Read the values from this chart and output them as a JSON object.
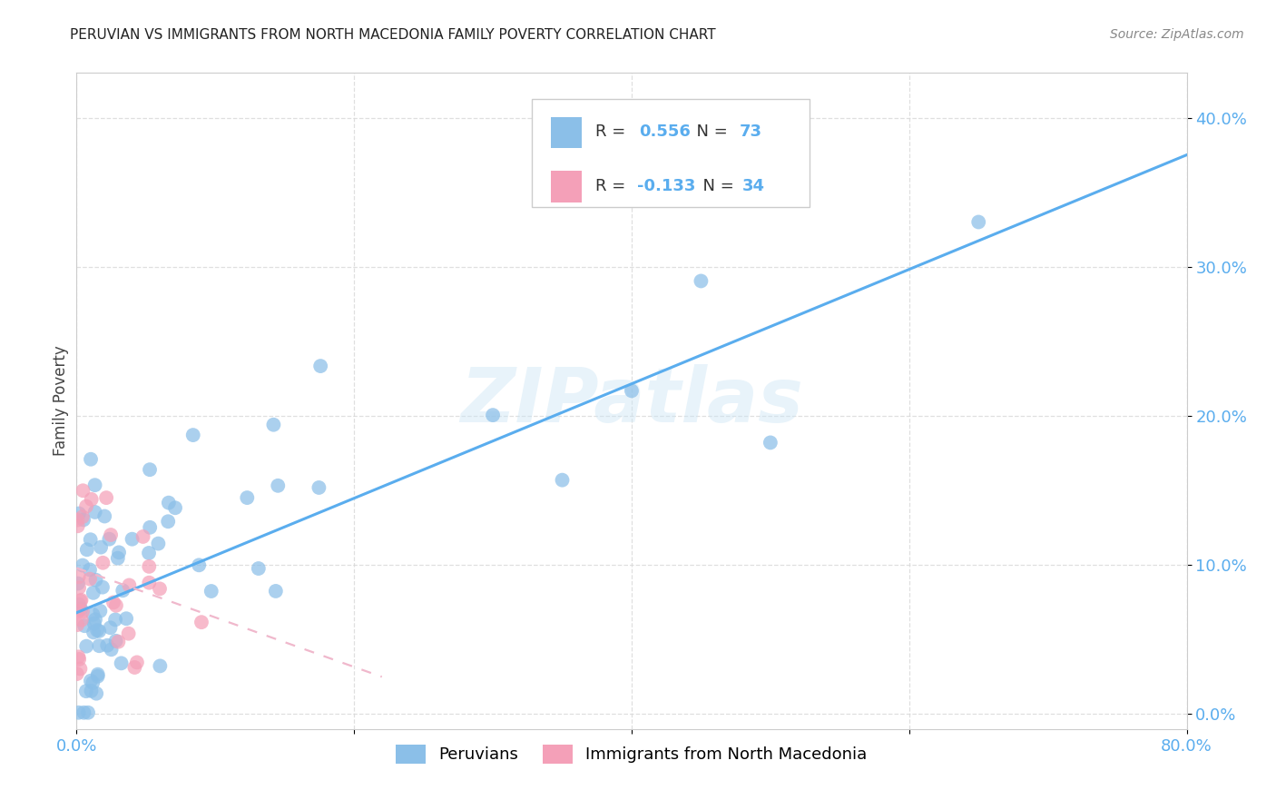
{
  "title": "PERUVIAN VS IMMIGRANTS FROM NORTH MACEDONIA FAMILY POVERTY CORRELATION CHART",
  "source": "Source: ZipAtlas.com",
  "ylabel": "Family Poverty",
  "ytick_values": [
    0.0,
    0.1,
    0.2,
    0.3,
    0.4
  ],
  "xlim": [
    0.0,
    0.8
  ],
  "ylim": [
    -0.01,
    0.43
  ],
  "peruvian_color": "#8bbfe8",
  "peruvian_color_edge": "#8bbfe8",
  "macedonia_color": "#f4a0b8",
  "macedonia_color_edge": "#f4a0b8",
  "trend_peruvian_color": "#5aadee",
  "trend_macedonia_color": "#f0b8cc",
  "R_peruvian": 0.556,
  "N_peruvian": 73,
  "R_macedonia": -0.133,
  "N_macedonia": 34,
  "watermark": "ZIPatlas",
  "legend_peruvian": "Peruvians",
  "legend_macedonia": "Immigrants from North Macedonia",
  "peru_trend_x0": 0.0,
  "peru_trend_y0": 0.068,
  "peru_trend_x1": 0.8,
  "peru_trend_y1": 0.375,
  "mac_trend_x0": 0.0,
  "mac_trend_y0": 0.098,
  "mac_trend_x1": 0.22,
  "mac_trend_y1": 0.025
}
